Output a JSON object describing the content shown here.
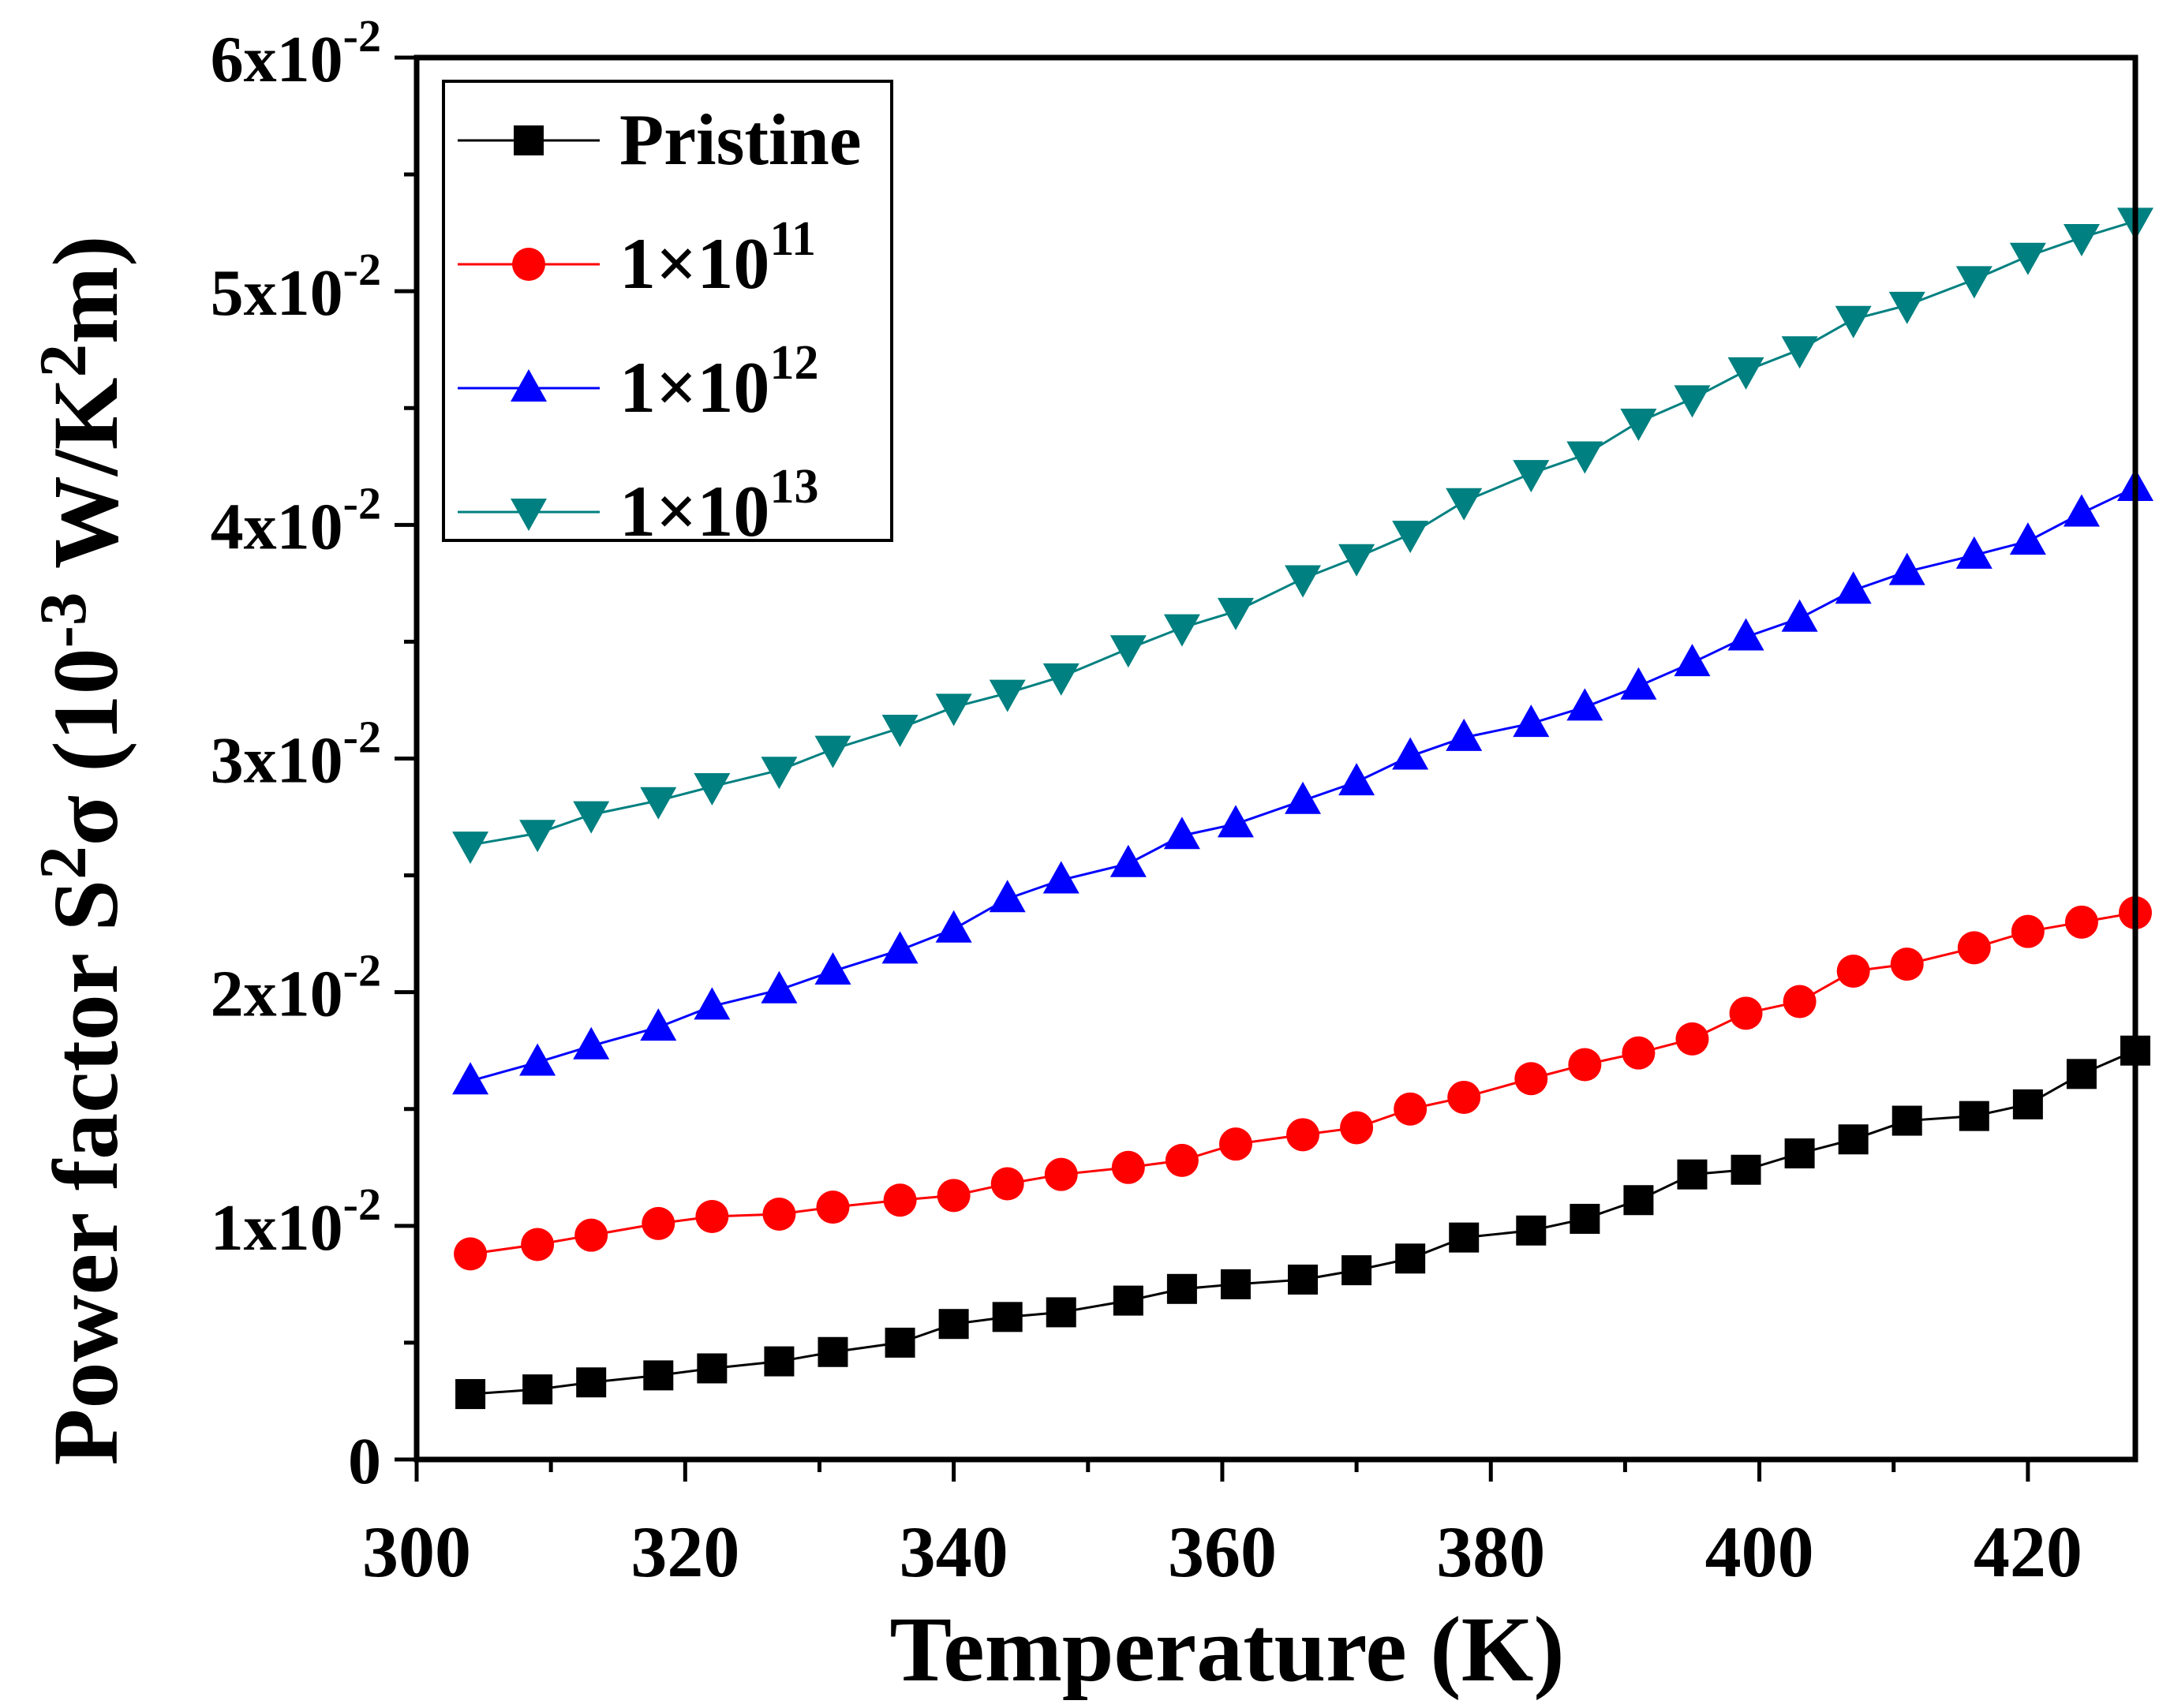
{
  "chart_data": {
    "type": "line",
    "xlabel": "Temperature (K)",
    "ylabel": {
      "prefix": "Power factor S",
      "sup1": "2",
      "mid": "σ (10",
      "sup2": "-3",
      "mid2": " W/K",
      "sup3": "2",
      "suffix": "m)"
    },
    "xlim": [
      300,
      428
    ],
    "ylim": [
      0,
      0.06
    ],
    "xticks": [
      300,
      320,
      340,
      360,
      380,
      400,
      420
    ],
    "xtick_labels": [
      "300",
      "320",
      "340",
      "360",
      "380",
      "400",
      "420"
    ],
    "yticks": [
      0,
      0.01,
      0.02,
      0.03,
      0.04,
      0.05,
      0.06
    ],
    "ytick_labels": [
      {
        "base": "0",
        "exp": ""
      },
      {
        "base": "1x10",
        "exp": "-2"
      },
      {
        "base": "2x10",
        "exp": "-2"
      },
      {
        "base": "3x10",
        "exp": "-2"
      },
      {
        "base": "4x10",
        "exp": "-2"
      },
      {
        "base": "5x10",
        "exp": "-2"
      },
      {
        "base": "6x10",
        "exp": "-2"
      }
    ],
    "x": [
      304,
      309,
      313,
      318,
      322,
      327,
      331,
      336,
      340,
      344,
      348,
      353,
      357,
      361,
      366,
      370,
      374,
      378,
      383,
      387,
      391,
      395,
      399,
      403,
      407,
      411,
      416,
      420,
      424,
      428
    ],
    "series": [
      {
        "name": "Pristine",
        "legend_base": "Pristine",
        "legend_exp": "",
        "color": "#000000",
        "marker": "square",
        "values": [
          0.0028,
          0.003,
          0.0033,
          0.0036,
          0.0039,
          0.0042,
          0.0046,
          0.005,
          0.0058,
          0.0061,
          0.0063,
          0.0068,
          0.0073,
          0.0075,
          0.0077,
          0.0081,
          0.0086,
          0.0095,
          0.0098,
          0.0103,
          0.0111,
          0.0122,
          0.0124,
          0.0131,
          0.0137,
          0.0145,
          0.0147,
          0.0152,
          0.0165,
          0.0175
        ]
      },
      {
        "name": "1×10^11",
        "legend_base": "1×10",
        "legend_exp": "11",
        "color": "#ff0000",
        "marker": "circle",
        "values": [
          0.0088,
          0.0092,
          0.0096,
          0.0101,
          0.0104,
          0.0105,
          0.0108,
          0.0111,
          0.0113,
          0.0118,
          0.0122,
          0.0125,
          0.0128,
          0.0135,
          0.0139,
          0.0142,
          0.015,
          0.0155,
          0.0163,
          0.0169,
          0.0174,
          0.018,
          0.0191,
          0.0196,
          0.0209,
          0.0212,
          0.0219,
          0.0226,
          0.023,
          0.0234
        ]
      },
      {
        "name": "1×10^12",
        "legend_base": "1×10",
        "legend_exp": "12",
        "color": "#0000ff",
        "marker": "triangle-up",
        "values": [
          0.0162,
          0.017,
          0.0177,
          0.0185,
          0.0194,
          0.0201,
          0.0209,
          0.0218,
          0.0227,
          0.024,
          0.0248,
          0.0255,
          0.0267,
          0.0272,
          0.0282,
          0.029,
          0.0301,
          0.0309,
          0.0315,
          0.0322,
          0.0331,
          0.0341,
          0.0352,
          0.036,
          0.0372,
          0.038,
          0.0387,
          0.0393,
          0.0405,
          0.0416
        ]
      },
      {
        "name": "1×10^13",
        "legend_base": "1×10",
        "legend_exp": "13",
        "color": "#008080",
        "marker": "triangle-down",
        "values": [
          0.0263,
          0.0268,
          0.0276,
          0.0282,
          0.0288,
          0.0295,
          0.0304,
          0.0313,
          0.0322,
          0.0328,
          0.0335,
          0.0347,
          0.0356,
          0.0363,
          0.0377,
          0.0386,
          0.0396,
          0.041,
          0.0422,
          0.043,
          0.0444,
          0.0454,
          0.0466,
          0.0475,
          0.0488,
          0.0494,
          0.0505,
          0.0515,
          0.0523,
          0.053
        ]
      }
    ],
    "legend_position": "top-left"
  }
}
